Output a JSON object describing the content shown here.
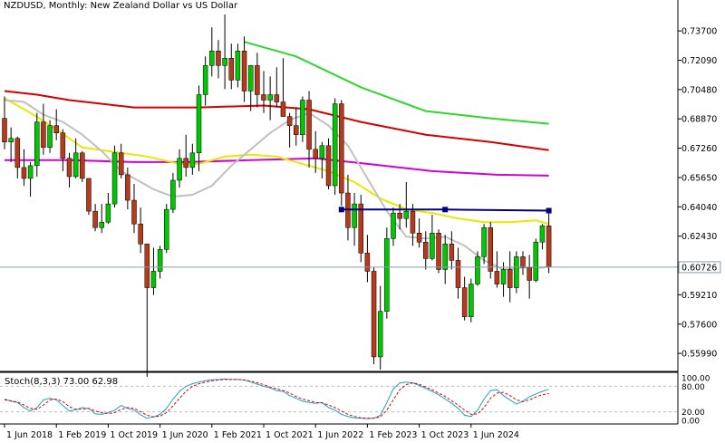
{
  "colors": {
    "background": "#ffffff",
    "axis": "#000000",
    "bull": "#00c800",
    "bear": "#b83a1c",
    "wick": "#000000",
    "ma_green": "#2ed62e",
    "ma_red": "#d40000",
    "ma_magenta": "#d400d4",
    "ma_yellow": "#e8e800",
    "ma_gray": "#c0c0c0",
    "trendline": "#000080",
    "priceline": "#8a9ab0",
    "stoch_main": "#1fa2c0",
    "stoch_signal": "#e00000",
    "current_label_bg": "#ffffff"
  },
  "main_chart": {
    "title": "NZDUSD, Monthly:  New Zealand Dollar vs US Dollar",
    "y_ticks": [
      "0.73700",
      "0.72090",
      "0.70480",
      "0.68870",
      "0.67260",
      "0.65650",
      "0.64040",
      "0.62430",
      "0.60726",
      "0.59210",
      "0.57600",
      "0.55990"
    ],
    "current_price_label": "0.60726",
    "x_ticks": [
      "1 Jun 2018",
      "1 Feb 2019",
      "1 Oct 2019",
      "1 Jun 2020",
      "1 Feb 2021",
      "1 Oct 2021",
      "1 Jun 2022",
      "1 Feb 2023",
      "1 Oct 2023",
      "1 Jun 2024"
    ]
  },
  "stoch_panel": {
    "title": "Stoch(8,3,3) 73.00 62.98",
    "y_ticks": [
      "100.00",
      "80.00",
      "20.00",
      "0.00"
    ]
  },
  "chart_data": {
    "type": "candlestick",
    "symbol": "NZDUSD",
    "timeframe": "Monthly",
    "ylim": [
      0.552,
      0.75
    ],
    "candles": [
      {
        "o": 0.689,
        "h": 0.701,
        "l": 0.672,
        "c": 0.676
      },
      {
        "o": 0.676,
        "h": 0.684,
        "l": 0.665,
        "c": 0.678
      },
      {
        "o": 0.678,
        "h": 0.679,
        "l": 0.656,
        "c": 0.662
      },
      {
        "o": 0.662,
        "h": 0.672,
        "l": 0.652,
        "c": 0.656
      },
      {
        "o": 0.656,
        "h": 0.665,
        "l": 0.646,
        "c": 0.663
      },
      {
        "o": 0.663,
        "h": 0.692,
        "l": 0.657,
        "c": 0.687
      },
      {
        "o": 0.687,
        "h": 0.697,
        "l": 0.669,
        "c": 0.673
      },
      {
        "o": 0.673,
        "h": 0.688,
        "l": 0.67,
        "c": 0.685
      },
      {
        "o": 0.685,
        "h": 0.694,
        "l": 0.677,
        "c": 0.681
      },
      {
        "o": 0.681,
        "h": 0.683,
        "l": 0.66,
        "c": 0.667
      },
      {
        "o": 0.667,
        "h": 0.67,
        "l": 0.651,
        "c": 0.657
      },
      {
        "o": 0.657,
        "h": 0.678,
        "l": 0.656,
        "c": 0.67
      },
      {
        "o": 0.67,
        "h": 0.671,
        "l": 0.654,
        "c": 0.656
      },
      {
        "o": 0.656,
        "h": 0.656,
        "l": 0.636,
        "c": 0.638
      },
      {
        "o": 0.638,
        "h": 0.642,
        "l": 0.627,
        "c": 0.629
      },
      {
        "o": 0.629,
        "h": 0.642,
        "l": 0.626,
        "c": 0.632
      },
      {
        "o": 0.632,
        "h": 0.648,
        "l": 0.631,
        "c": 0.642
      },
      {
        "o": 0.642,
        "h": 0.674,
        "l": 0.64,
        "c": 0.67
      },
      {
        "o": 0.67,
        "h": 0.675,
        "l": 0.656,
        "c": 0.658
      },
      {
        "o": 0.658,
        "h": 0.662,
        "l": 0.639,
        "c": 0.644
      },
      {
        "o": 0.644,
        "h": 0.653,
        "l": 0.626,
        "c": 0.631
      },
      {
        "o": 0.631,
        "h": 0.64,
        "l": 0.615,
        "c": 0.62
      },
      {
        "o": 0.62,
        "h": 0.62,
        "l": 0.547,
        "c": 0.596
      },
      {
        "o": 0.596,
        "h": 0.618,
        "l": 0.592,
        "c": 0.605
      },
      {
        "o": 0.605,
        "h": 0.619,
        "l": 0.601,
        "c": 0.617
      },
      {
        "o": 0.617,
        "h": 0.642,
        "l": 0.615,
        "c": 0.639
      },
      {
        "o": 0.639,
        "h": 0.659,
        "l": 0.637,
        "c": 0.655
      },
      {
        "o": 0.655,
        "h": 0.672,
        "l": 0.651,
        "c": 0.667
      },
      {
        "o": 0.667,
        "h": 0.68,
        "l": 0.657,
        "c": 0.662
      },
      {
        "o": 0.662,
        "h": 0.675,
        "l": 0.658,
        "c": 0.67
      },
      {
        "o": 0.67,
        "h": 0.707,
        "l": 0.66,
        "c": 0.702
      },
      {
        "o": 0.702,
        "h": 0.723,
        "l": 0.696,
        "c": 0.718
      },
      {
        "o": 0.718,
        "h": 0.739,
        "l": 0.712,
        "c": 0.726
      },
      {
        "o": 0.726,
        "h": 0.732,
        "l": 0.711,
        "c": 0.718
      },
      {
        "o": 0.718,
        "h": 0.746,
        "l": 0.705,
        "c": 0.722
      },
      {
        "o": 0.722,
        "h": 0.73,
        "l": 0.705,
        "c": 0.71
      },
      {
        "o": 0.71,
        "h": 0.73,
        "l": 0.706,
        "c": 0.726
      },
      {
        "o": 0.726,
        "h": 0.734,
        "l": 0.698,
        "c": 0.704
      },
      {
        "o": 0.704,
        "h": 0.718,
        "l": 0.693,
        "c": 0.718
      },
      {
        "o": 0.718,
        "h": 0.725,
        "l": 0.695,
        "c": 0.702
      },
      {
        "o": 0.702,
        "h": 0.715,
        "l": 0.692,
        "c": 0.699
      },
      {
        "o": 0.699,
        "h": 0.712,
        "l": 0.688,
        "c": 0.702
      },
      {
        "o": 0.702,
        "h": 0.717,
        "l": 0.695,
        "c": 0.698
      },
      {
        "o": 0.698,
        "h": 0.722,
        "l": 0.69,
        "c": 0.69
      },
      {
        "o": 0.69,
        "h": 0.692,
        "l": 0.673,
        "c": 0.685
      },
      {
        "o": 0.685,
        "h": 0.695,
        "l": 0.674,
        "c": 0.68
      },
      {
        "o": 0.68,
        "h": 0.701,
        "l": 0.676,
        "c": 0.699
      },
      {
        "o": 0.699,
        "h": 0.704,
        "l": 0.662,
        "c": 0.672
      },
      {
        "o": 0.672,
        "h": 0.682,
        "l": 0.659,
        "c": 0.667
      },
      {
        "o": 0.667,
        "h": 0.676,
        "l": 0.656,
        "c": 0.674
      },
      {
        "o": 0.674,
        "h": 0.678,
        "l": 0.65,
        "c": 0.652
      },
      {
        "o": 0.652,
        "h": 0.7,
        "l": 0.647,
        "c": 0.697
      },
      {
        "o": 0.697,
        "h": 0.699,
        "l": 0.641,
        "c": 0.648
      },
      {
        "o": 0.648,
        "h": 0.658,
        "l": 0.622,
        "c": 0.629
      },
      {
        "o": 0.629,
        "h": 0.648,
        "l": 0.619,
        "c": 0.642
      },
      {
        "o": 0.642,
        "h": 0.647,
        "l": 0.61,
        "c": 0.615
      },
      {
        "o": 0.615,
        "h": 0.625,
        "l": 0.599,
        "c": 0.605
      },
      {
        "o": 0.605,
        "h": 0.607,
        "l": 0.554,
        "c": 0.558
      },
      {
        "o": 0.558,
        "h": 0.597,
        "l": 0.551,
        "c": 0.583
      },
      {
        "o": 0.583,
        "h": 0.629,
        "l": 0.579,
        "c": 0.623
      },
      {
        "o": 0.623,
        "h": 0.64,
        "l": 0.619,
        "c": 0.637
      },
      {
        "o": 0.637,
        "h": 0.642,
        "l": 0.628,
        "c": 0.634
      },
      {
        "o": 0.634,
        "h": 0.654,
        "l": 0.629,
        "c": 0.638
      },
      {
        "o": 0.638,
        "h": 0.642,
        "l": 0.619,
        "c": 0.626
      },
      {
        "o": 0.626,
        "h": 0.634,
        "l": 0.618,
        "c": 0.621
      },
      {
        "o": 0.621,
        "h": 0.627,
        "l": 0.606,
        "c": 0.612
      },
      {
        "o": 0.612,
        "h": 0.636,
        "l": 0.611,
        "c": 0.626
      },
      {
        "o": 0.626,
        "h": 0.628,
        "l": 0.604,
        "c": 0.606
      },
      {
        "o": 0.606,
        "h": 0.625,
        "l": 0.598,
        "c": 0.62
      },
      {
        "o": 0.62,
        "h": 0.627,
        "l": 0.606,
        "c": 0.611
      },
      {
        "o": 0.611,
        "h": 0.618,
        "l": 0.59,
        "c": 0.596
      },
      {
        "o": 0.596,
        "h": 0.602,
        "l": 0.578,
        "c": 0.58
      },
      {
        "o": 0.58,
        "h": 0.601,
        "l": 0.577,
        "c": 0.598
      },
      {
        "o": 0.598,
        "h": 0.616,
        "l": 0.597,
        "c": 0.613
      },
      {
        "o": 0.613,
        "h": 0.631,
        "l": 0.609,
        "c": 0.629
      },
      {
        "o": 0.629,
        "h": 0.632,
        "l": 0.601,
        "c": 0.605
      },
      {
        "o": 0.605,
        "h": 0.616,
        "l": 0.596,
        "c": 0.598
      },
      {
        "o": 0.598,
        "h": 0.61,
        "l": 0.591,
        "c": 0.606
      },
      {
        "o": 0.606,
        "h": 0.616,
        "l": 0.588,
        "c": 0.596
      },
      {
        "o": 0.596,
        "h": 0.616,
        "l": 0.593,
        "c": 0.613
      },
      {
        "o": 0.613,
        "h": 0.616,
        "l": 0.603,
        "c": 0.607
      },
      {
        "o": 0.607,
        "h": 0.614,
        "l": 0.59,
        "c": 0.6
      },
      {
        "o": 0.6,
        "h": 0.623,
        "l": 0.599,
        "c": 0.621
      },
      {
        "o": 0.621,
        "h": 0.631,
        "l": 0.617,
        "c": 0.63
      },
      {
        "o": 0.63,
        "h": 0.638,
        "l": 0.604,
        "c": 0.6073
      }
    ],
    "moving_averages": [
      {
        "color": "ma_green",
        "points": [
          [
            37,
            0.731
          ],
          [
            45,
            0.723
          ],
          [
            55,
            0.706
          ],
          [
            65,
            0.693
          ],
          [
            75,
            0.689
          ],
          [
            84,
            0.686
          ]
        ]
      },
      {
        "color": "ma_red",
        "points": [
          [
            0,
            0.704
          ],
          [
            5,
            0.702
          ],
          [
            10,
            0.699
          ],
          [
            20,
            0.695
          ],
          [
            30,
            0.695
          ],
          [
            40,
            0.696
          ],
          [
            47,
            0.694
          ],
          [
            55,
            0.687
          ],
          [
            65,
            0.68
          ],
          [
            75,
            0.676
          ],
          [
            84,
            0.6715
          ]
        ]
      },
      {
        "color": "ma_magenta",
        "points": [
          [
            0,
            0.666
          ],
          [
            10,
            0.666
          ],
          [
            20,
            0.665
          ],
          [
            28,
            0.665
          ],
          [
            38,
            0.666
          ],
          [
            48,
            0.667
          ],
          [
            56,
            0.664
          ],
          [
            66,
            0.66
          ],
          [
            76,
            0.658
          ],
          [
            84,
            0.6575
          ]
        ]
      },
      {
        "color": "ma_yellow",
        "points": [
          [
            0,
            0.7
          ],
          [
            4,
            0.692
          ],
          [
            8,
            0.683
          ],
          [
            12,
            0.673
          ],
          [
            18,
            0.67
          ],
          [
            22,
            0.668
          ],
          [
            27,
            0.664
          ],
          [
            30,
            0.664
          ],
          [
            34,
            0.668
          ],
          [
            38,
            0.669
          ],
          [
            42,
            0.668
          ],
          [
            46,
            0.664
          ],
          [
            50,
            0.66
          ],
          [
            54,
            0.654
          ],
          [
            58,
            0.645
          ],
          [
            62,
            0.639
          ],
          [
            66,
            0.637
          ],
          [
            70,
            0.634
          ],
          [
            74,
            0.632
          ],
          [
            78,
            0.632
          ],
          [
            82,
            0.633
          ],
          [
            84,
            0.631
          ]
        ]
      },
      {
        "color": "ma_gray",
        "points": [
          [
            0,
            0.699
          ],
          [
            3,
            0.698
          ],
          [
            6,
            0.691
          ],
          [
            9,
            0.687
          ],
          [
            12,
            0.68
          ],
          [
            15,
            0.671
          ],
          [
            18,
            0.66
          ],
          [
            20,
            0.656
          ],
          [
            23,
            0.65
          ],
          [
            26,
            0.646
          ],
          [
            29,
            0.647
          ],
          [
            32,
            0.652
          ],
          [
            35,
            0.663
          ],
          [
            38,
            0.672
          ],
          [
            41,
            0.681
          ],
          [
            44,
            0.688
          ],
          [
            47,
            0.692
          ],
          [
            50,
            0.685
          ],
          [
            53,
            0.674
          ],
          [
            56,
            0.656
          ],
          [
            59,
            0.638
          ],
          [
            62,
            0.624
          ],
          [
            65,
            0.623
          ],
          [
            68,
            0.624
          ],
          [
            71,
            0.619
          ],
          [
            74,
            0.611
          ],
          [
            77,
            0.606
          ],
          [
            80,
            0.607
          ],
          [
            83,
            0.607
          ],
          [
            84,
            0.6075
          ]
        ]
      }
    ],
    "trendline": {
      "points": [
        [
          52,
          0.6389
        ],
        [
          68,
          0.6389
        ],
        [
          84,
          0.6383
        ]
      ]
    },
    "current_price": 0.60726,
    "stochastic": {
      "ylim": [
        0,
        100
      ],
      "main": [
        50,
        45,
        42,
        30,
        22,
        30,
        48,
        52,
        48,
        35,
        22,
        25,
        30,
        28,
        15,
        14,
        18,
        24,
        35,
        28,
        24,
        13,
        5,
        8,
        14,
        28,
        50,
        68,
        80,
        86,
        90,
        93,
        95,
        96,
        97,
        96,
        96,
        95,
        90,
        85,
        80,
        76,
        70,
        68,
        58,
        52,
        45,
        42,
        40,
        42,
        30,
        24,
        14,
        9,
        6,
        5,
        4,
        5,
        12,
        42,
        74,
        88,
        90,
        88,
        82,
        75,
        68,
        60,
        50,
        40,
        28,
        12,
        9,
        24,
        50,
        70,
        72,
        58,
        48,
        38,
        45,
        55,
        62,
        68,
        73
      ],
      "signal": [
        48,
        46,
        43,
        36,
        28,
        26,
        36,
        48,
        50,
        44,
        32,
        26,
        26,
        28,
        22,
        18,
        16,
        18,
        26,
        30,
        28,
        20,
        12,
        8,
        10,
        18,
        34,
        52,
        68,
        80,
        86,
        90,
        93,
        95,
        96,
        96,
        96,
        95,
        92,
        88,
        84,
        78,
        74,
        70,
        64,
        56,
        50,
        46,
        42,
        41,
        36,
        30,
        22,
        14,
        9,
        6,
        5,
        5,
        8,
        24,
        48,
        72,
        84,
        88,
        85,
        78,
        72,
        64,
        56,
        46,
        36,
        24,
        14,
        15,
        30,
        52,
        64,
        66,
        58,
        48,
        44,
        48,
        55,
        60,
        63
      ]
    }
  }
}
